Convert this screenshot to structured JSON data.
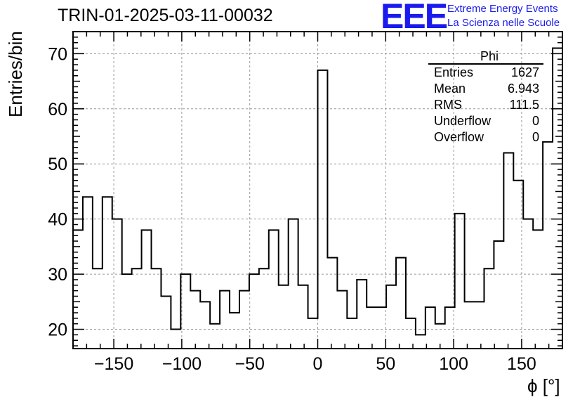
{
  "title": "TRIN-01-2025-03-11-00032",
  "logo": {
    "mark": "EEE",
    "line1": "Extreme Energy Events",
    "line2": "La Scienza nelle Scuole",
    "color": "#1a1aee"
  },
  "stats": {
    "title": "Phi",
    "rows": [
      {
        "label": "Entries",
        "value": "1627"
      },
      {
        "label": "Mean",
        "value": "6.943"
      },
      {
        "label": "RMS",
        "value": "111.5"
      },
      {
        "label": "Underflow",
        "value": "0"
      },
      {
        "label": "Overflow",
        "value": "0"
      }
    ]
  },
  "chart_data": {
    "type": "histogram",
    "title": "TRIN-01-2025-03-11-00032",
    "xlabel": "ϕ [°]",
    "ylabel": "Entries/bin",
    "xlim": [
      -180,
      180
    ],
    "ylim": [
      16.5,
      74
    ],
    "bin_edges_start": -180,
    "bin_width": 7.2,
    "values": [
      38,
      44,
      31,
      44,
      40,
      30,
      31,
      38,
      31,
      26,
      20,
      30,
      27,
      25,
      21,
      27,
      23,
      27,
      30,
      31,
      38,
      28,
      40,
      28,
      22,
      67,
      33,
      27,
      22,
      29,
      24,
      24,
      28,
      33,
      22,
      19,
      24,
      21,
      24,
      41,
      25,
      25,
      31,
      36,
      52,
      47,
      40,
      38,
      54,
      71
    ],
    "x_ticks": [
      -150,
      -100,
      -50,
      0,
      50,
      100,
      150
    ],
    "x_tick_labels": [
      "−150",
      "−100",
      "−50",
      "0",
      "50",
      "100",
      "150"
    ],
    "y_ticks": [
      20,
      30,
      40,
      50,
      60,
      70
    ],
    "y_tick_labels": [
      "20",
      "30",
      "40",
      "50",
      "60",
      "70"
    ],
    "grid": true,
    "line_color": "#000000",
    "grid_color": "#999999"
  }
}
